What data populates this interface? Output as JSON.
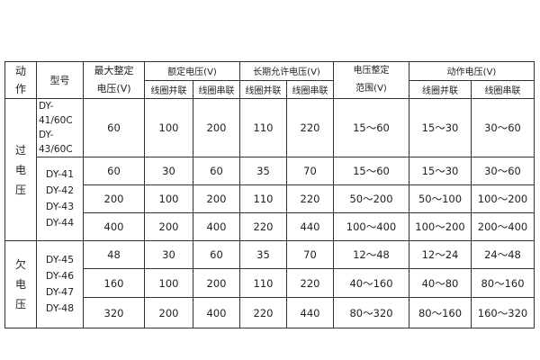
{
  "header": {
    "action": [
      "动",
      "作"
    ],
    "model": "型号",
    "max_setting": [
      "最大整定",
      "电压(V)"
    ],
    "rated_voltage": "额定电压(V)",
    "long_term_voltage": "长期允许电压(V)",
    "setting_range": [
      "电压整定",
      "范围(V)"
    ],
    "operating_voltage": "动作电压(V)",
    "coil_parallel": "线圈并联",
    "coil_series": "线圈串联"
  },
  "groups": [
    {
      "action": [
        "过",
        "电",
        "压"
      ],
      "rows": [
        {
          "models": [
            "DY-41/60C",
            "DY-43/60C"
          ],
          "max": "60",
          "rated_p": "100",
          "rated_s": "200",
          "long_p": "110",
          "long_s": "220",
          "range": "15～60",
          "op_p": "15～30",
          "op_s": "30～60"
        },
        {
          "max": "60",
          "rated_p": "30",
          "rated_s": "60",
          "long_p": "35",
          "long_s": "70",
          "range": "15～60",
          "op_p": "15～30",
          "op_s": "30～60"
        },
        {
          "max": "200",
          "rated_p": "100",
          "rated_s": "200",
          "long_p": "110",
          "long_s": "220",
          "range": "50～200",
          "op_p": "50～100",
          "op_s": "100～200"
        },
        {
          "max": "400",
          "rated_p": "200",
          "rated_s": "400",
          "long_p": "220",
          "long_s": "440",
          "range": "100～400",
          "op_p": "100～200",
          "op_s": "200～400"
        }
      ],
      "models": [
        "DY-41",
        "DY-42",
        "DY-43",
        "DY-44"
      ]
    },
    {
      "action": [
        "欠",
        "电",
        "压"
      ],
      "rows": [
        {
          "max": "48",
          "rated_p": "30",
          "rated_s": "60",
          "long_p": "35",
          "long_s": "70",
          "range": "12～48",
          "op_p": "12～24",
          "op_s": "24～48"
        },
        {
          "max": "160",
          "rated_p": "100",
          "rated_s": "200",
          "long_p": "110",
          "long_s": "220",
          "range": "40～160",
          "op_p": "40～80",
          "op_s": "80～160"
        },
        {
          "max": "320",
          "rated_p": "200",
          "rated_s": "400",
          "long_p": "220",
          "long_s": "440",
          "range": "80～320",
          "op_p": "80～160",
          "op_s": "160～320"
        }
      ],
      "models": [
        "DY-45",
        "DY-46",
        "DY-47",
        "DY-48"
      ]
    }
  ]
}
